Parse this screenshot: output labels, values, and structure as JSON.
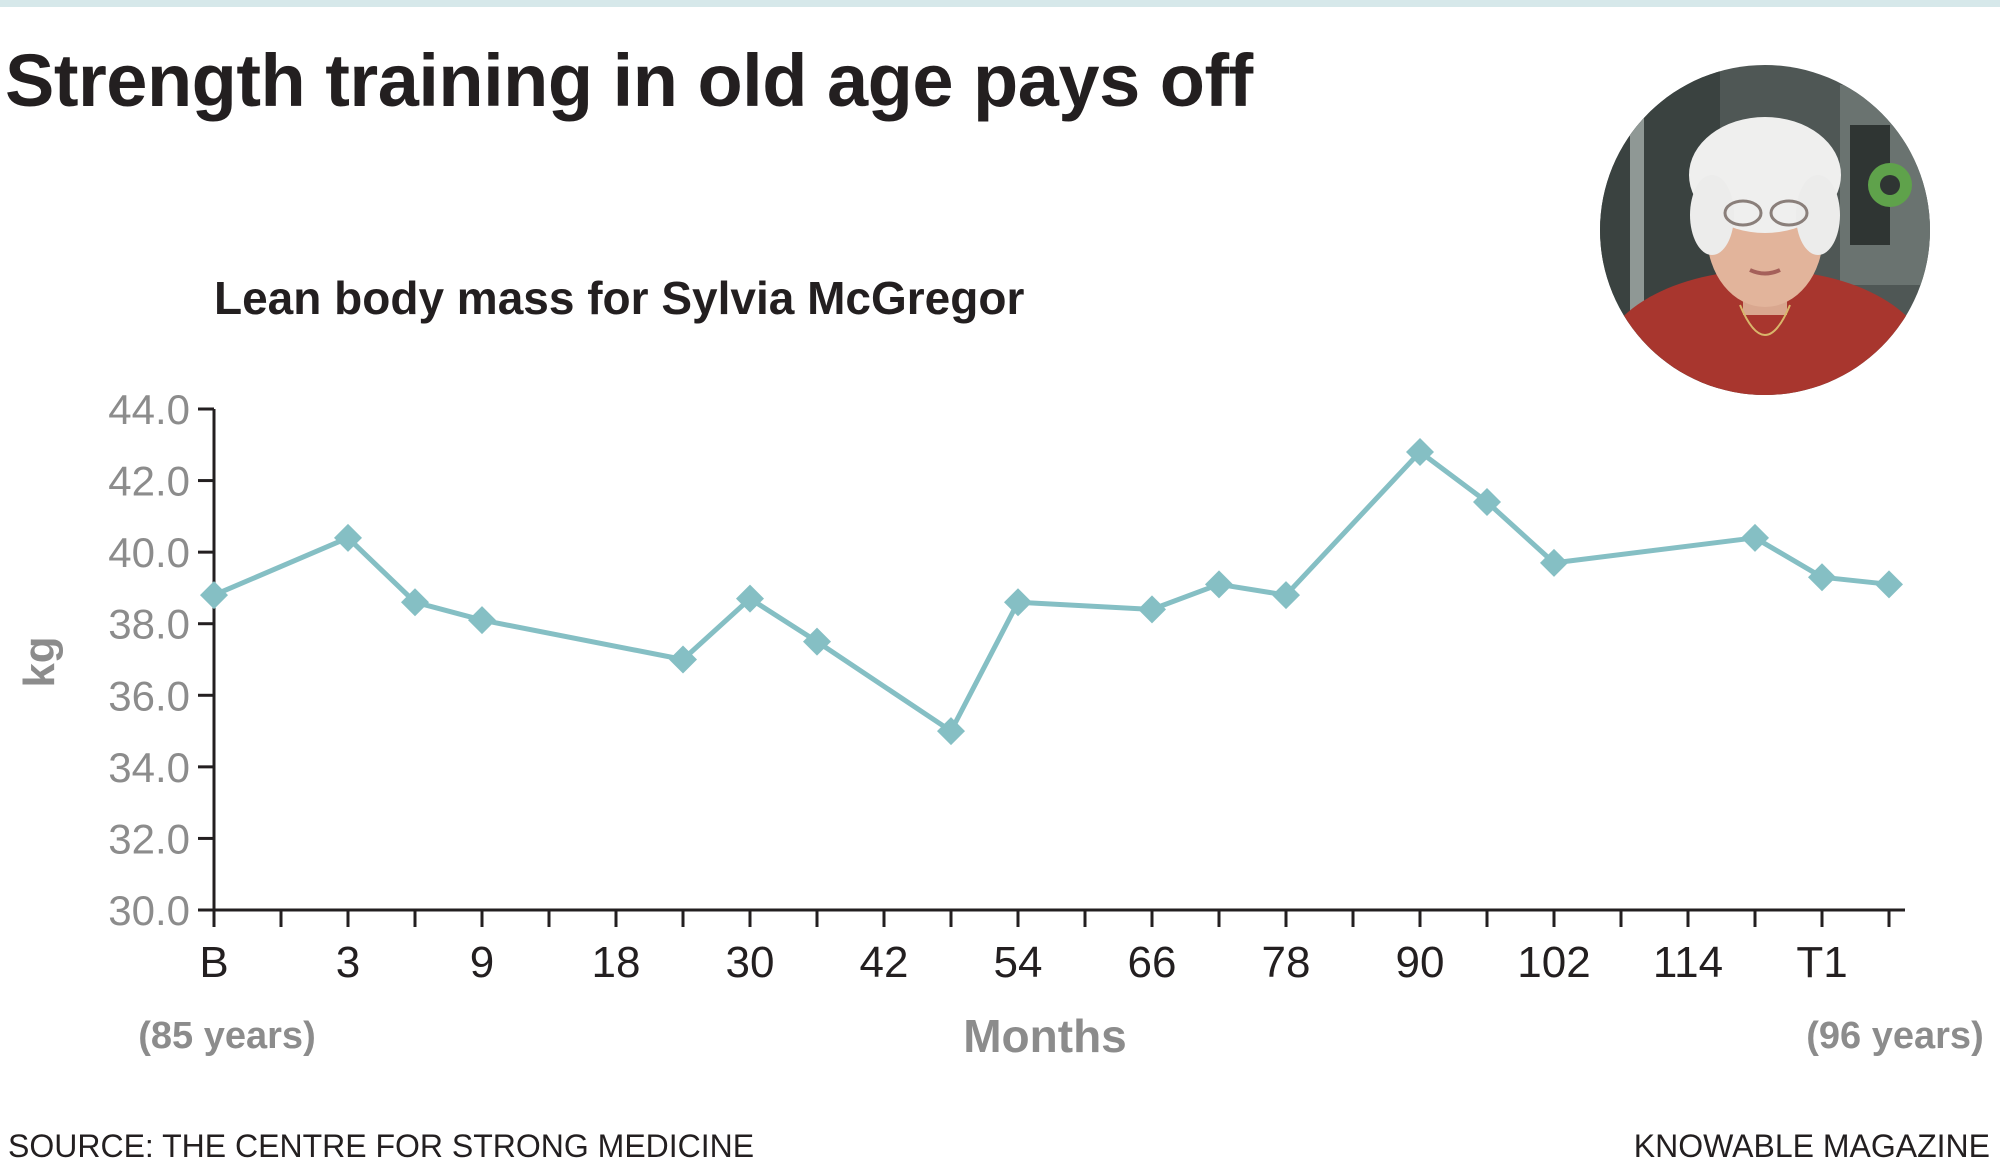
{
  "headline": "Strength training in old age pays off",
  "photo": {
    "icon": "portrait-photo-icon"
  },
  "chart_data": {
    "type": "line",
    "title": "Lean body mass for Sylvia McGregor",
    "xlabel": "Months",
    "ylabel": "kg",
    "ylim": [
      30.0,
      44.0
    ],
    "yticks": [
      "30.0",
      "32.0",
      "34.0",
      "36.0",
      "38.0",
      "40.0",
      "42.0",
      "44.0"
    ],
    "xtick_labels": [
      "B",
      "3",
      "9",
      "18",
      "30",
      "42",
      "54",
      "66",
      "78",
      "90",
      "102",
      "114",
      "T1"
    ],
    "x_start_note": "(85 years)",
    "x_end_note": "(96 years)",
    "grid": false,
    "legend": "none",
    "line_color": "#85bfc4",
    "series": [
      {
        "points": [
          {
            "slot": 0,
            "y": 38.8
          },
          {
            "slot": 2,
            "y": 40.4
          },
          {
            "slot": 3,
            "y": 38.6
          },
          {
            "slot": 4,
            "y": 38.1
          },
          {
            "slot": 7,
            "y": 37.0
          },
          {
            "slot": 8,
            "y": 38.7
          },
          {
            "slot": 9,
            "y": 37.5
          },
          {
            "slot": 11,
            "y": 35.0
          },
          {
            "slot": 12,
            "y": 38.6
          },
          {
            "slot": 14,
            "y": 38.4
          },
          {
            "slot": 15,
            "y": 39.1
          },
          {
            "slot": 16,
            "y": 38.8
          },
          {
            "slot": 18,
            "y": 42.8
          },
          {
            "slot": 19,
            "y": 41.4
          },
          {
            "slot": 20,
            "y": 39.7
          },
          {
            "slot": 23,
            "y": 40.4
          },
          {
            "slot": 24,
            "y": 39.3
          },
          {
            "slot": 25,
            "y": 39.1
          }
        ]
      }
    ]
  },
  "footer": {
    "source": "SOURCE: THE CENTRE FOR STRONG MEDICINE",
    "credit": "KNOWABLE MAGAZINE"
  }
}
